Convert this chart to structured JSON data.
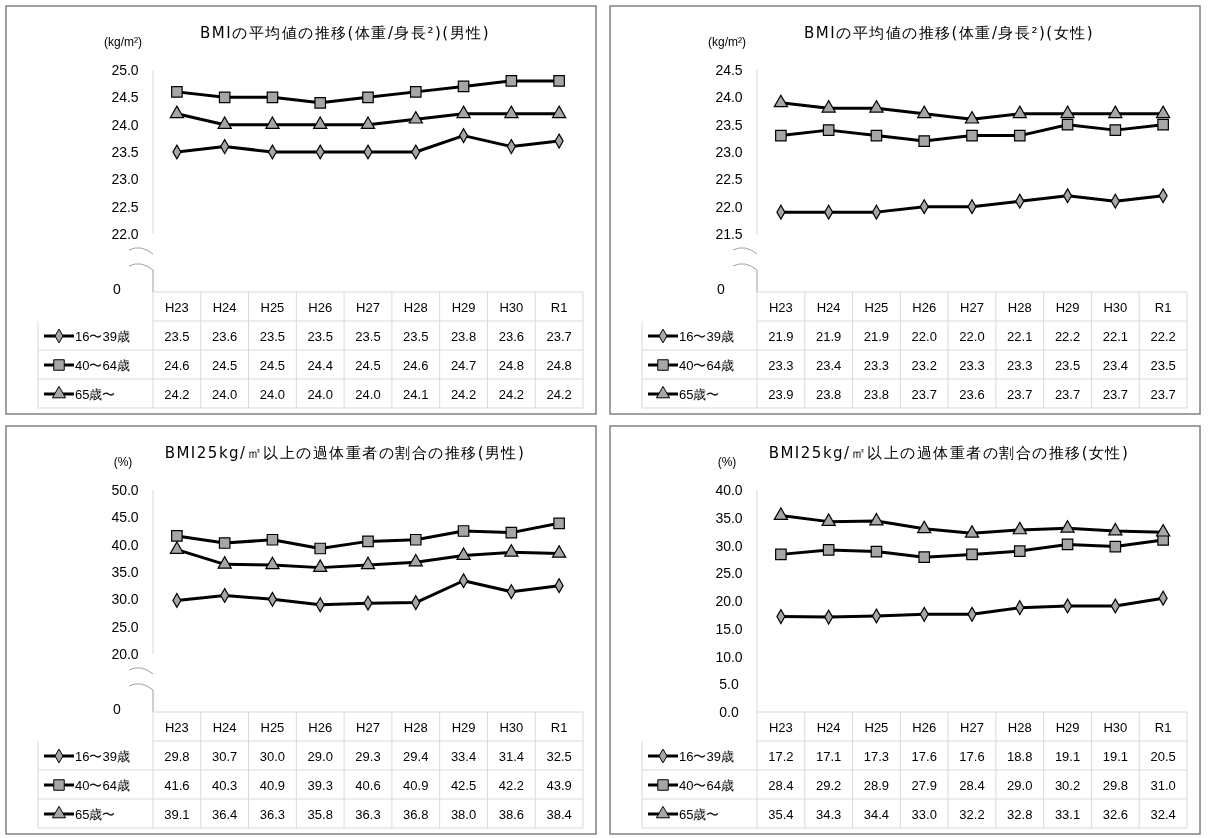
{
  "chart_data": [
    {
      "type": "line",
      "title": "BMIの平均値の推移(体重/身長²)(男性)",
      "ylabel": "(kg/m²)",
      "categories": [
        "H23",
        "H24",
        "H25",
        "H26",
        "H27",
        "H28",
        "H29",
        "H30",
        "R1"
      ],
      "ylim": [
        22.0,
        25.0
      ],
      "yticks": [
        {
          "value": 22,
          "label": "22.0"
        },
        {
          "value": 22.5,
          "label": "22.5"
        },
        {
          "value": 23,
          "label": "23.0"
        },
        {
          "value": 23.5,
          "label": "23.5"
        },
        {
          "value": 24,
          "label": "24.0"
        },
        {
          "value": 24.5,
          "label": "24.5"
        },
        {
          "value": 25,
          "label": "25.0"
        }
      ],
      "annotations": [
        "0"
      ],
      "legend": "bottom",
      "line_style": "solid",
      "series": [
        {
          "name": "16〜39歳",
          "color": "#000000",
          "marker": "diamond",
          "values": [
            23.5,
            23.6,
            23.5,
            23.5,
            23.5,
            23.5,
            23.8,
            23.6,
            23.7
          ],
          "value_labels": [
            "23.5",
            "23.6",
            "23.5",
            "23.5",
            "23.5",
            "23.5",
            "23.8",
            "23.6",
            "23.7"
          ]
        },
        {
          "name": "40〜64歳",
          "color": "#000000",
          "marker": "square",
          "values": [
            24.6,
            24.5,
            24.5,
            24.4,
            24.5,
            24.6,
            24.7,
            24.8,
            24.8
          ],
          "value_labels": [
            "24.6",
            "24.5",
            "24.5",
            "24.4",
            "24.5",
            "24.6",
            "24.7",
            "24.8",
            "24.8"
          ]
        },
        {
          "name": "65歳〜",
          "color": "#000000",
          "marker": "triangle",
          "values": [
            24.2,
            24.0,
            24.0,
            24.0,
            24.0,
            24.1,
            24.2,
            24.2,
            24.2
          ],
          "value_labels": [
            "24.2",
            "24.0",
            "24.0",
            "24.0",
            "24.0",
            "24.1",
            "24.2",
            "24.2",
            "24.2"
          ]
        }
      ]
    },
    {
      "type": "line",
      "title": "BMIの平均値の推移(体重/身長²)(女性)",
      "ylabel": "(kg/m²)",
      "categories": [
        "H23",
        "H24",
        "H25",
        "H26",
        "H27",
        "H28",
        "H29",
        "H30",
        "R1"
      ],
      "ylim": [
        21.5,
        24.5
      ],
      "yticks": [
        {
          "value": 21.5,
          "label": "21.5"
        },
        {
          "value": 22,
          "label": "22.0"
        },
        {
          "value": 22.5,
          "label": "22.5"
        },
        {
          "value": 23,
          "label": "23.0"
        },
        {
          "value": 23.5,
          "label": "23.5"
        },
        {
          "value": 24,
          "label": "24.0"
        },
        {
          "value": 24.5,
          "label": "24.5"
        }
      ],
      "annotations": [
        "0"
      ],
      "legend": "bottom",
      "line_style": "solid",
      "series": [
        {
          "name": "16〜39歳",
          "color": "#000000",
          "marker": "diamond",
          "values": [
            21.9,
            21.9,
            21.9,
            22.0,
            22.0,
            22.1,
            22.2,
            22.1,
            22.2
          ],
          "value_labels": [
            "21.9",
            "21.9",
            "21.9",
            "22.0",
            "22.0",
            "22.1",
            "22.2",
            "22.1",
            "22.2"
          ]
        },
        {
          "name": "40〜64歳",
          "color": "#000000",
          "marker": "square",
          "values": [
            23.3,
            23.4,
            23.3,
            23.2,
            23.3,
            23.3,
            23.5,
            23.4,
            23.5
          ],
          "value_labels": [
            "23.3",
            "23.4",
            "23.3",
            "23.2",
            "23.3",
            "23.3",
            "23.5",
            "23.4",
            "23.5"
          ]
        },
        {
          "name": "65歳〜",
          "color": "#000000",
          "marker": "triangle",
          "values": [
            23.9,
            23.8,
            23.8,
            23.7,
            23.6,
            23.7,
            23.7,
            23.7,
            23.7
          ],
          "value_labels": [
            "23.9",
            "23.8",
            "23.8",
            "23.7",
            "23.6",
            "23.7",
            "23.7",
            "23.7",
            "23.7"
          ]
        }
      ]
    },
    {
      "type": "line",
      "title": "BMI25kg/㎡以上の過体重者の割合の推移(男性)",
      "ylabel": "(%)",
      "categories": [
        "H23",
        "H24",
        "H25",
        "H26",
        "H27",
        "H28",
        "H29",
        "H30",
        "R1"
      ],
      "ylim": [
        20.0,
        50.0
      ],
      "yticks": [
        {
          "value": 20,
          "label": "20.0"
        },
        {
          "value": 25,
          "label": "25.0"
        },
        {
          "value": 30,
          "label": "30.0"
        },
        {
          "value": 35,
          "label": "35.0"
        },
        {
          "value": 40,
          "label": "40.0"
        },
        {
          "value": 45,
          "label": "45.0"
        },
        {
          "value": 50,
          "label": "50.0"
        }
      ],
      "annotations": [
        "0"
      ],
      "legend": "bottom",
      "line_style": "solid",
      "series": [
        {
          "name": "16〜39歳",
          "color": "#000000",
          "marker": "diamond",
          "values": [
            29.8,
            30.7,
            30.0,
            29.0,
            29.3,
            29.4,
            33.4,
            31.4,
            32.5
          ],
          "value_labels": [
            "29.8",
            "30.7",
            "30.0",
            "29.0",
            "29.3",
            "29.4",
            "33.4",
            "31.4",
            "32.5"
          ]
        },
        {
          "name": "40〜64歳",
          "color": "#000000",
          "marker": "square",
          "values": [
            41.6,
            40.3,
            40.9,
            39.3,
            40.6,
            40.9,
            42.5,
            42.2,
            43.9
          ],
          "value_labels": [
            "41.6",
            "40.3",
            "40.9",
            "39.3",
            "40.6",
            "40.9",
            "42.5",
            "42.2",
            "43.9"
          ]
        },
        {
          "name": "65歳〜",
          "color": "#000000",
          "marker": "triangle",
          "values": [
            39.1,
            36.4,
            36.3,
            35.8,
            36.3,
            36.8,
            38.0,
            38.6,
            38.4
          ],
          "value_labels": [
            "39.1",
            "36.4",
            "36.3",
            "35.8",
            "36.3",
            "36.8",
            "38.0",
            "38.6",
            "38.4"
          ]
        }
      ]
    },
    {
      "type": "line",
      "title": "BMI25kg/㎡以上の過体重者の割合の推移(女性)",
      "ylabel": "(%)",
      "categories": [
        "H23",
        "H24",
        "H25",
        "H26",
        "H27",
        "H28",
        "H29",
        "H30",
        "R1"
      ],
      "ylim": [
        0.0,
        40.0
      ],
      "yticks": [
        {
          "value": 0,
          "label": "0.0"
        },
        {
          "value": 5,
          "label": "5.0"
        },
        {
          "value": 10,
          "label": "10.0"
        },
        {
          "value": 15,
          "label": "15.0"
        },
        {
          "value": 20,
          "label": "20.0"
        },
        {
          "value": 25,
          "label": "25.0"
        },
        {
          "value": 30,
          "label": "30.0"
        },
        {
          "value": 35,
          "label": "35.0"
        },
        {
          "value": 40,
          "label": "40.0"
        }
      ],
      "legend": "bottom",
      "line_style": "solid",
      "series": [
        {
          "name": "16〜39歳",
          "color": "#000000",
          "marker": "diamond",
          "values": [
            17.2,
            17.1,
            17.3,
            17.6,
            17.6,
            18.8,
            19.1,
            19.1,
            20.5
          ],
          "value_labels": [
            "17.2",
            "17.1",
            "17.3",
            "17.6",
            "17.6",
            "18.8",
            "19.1",
            "19.1",
            "20.5"
          ]
        },
        {
          "name": "40〜64歳",
          "color": "#000000",
          "marker": "square",
          "values": [
            28.4,
            29.2,
            28.9,
            27.9,
            28.4,
            29.0,
            30.2,
            29.8,
            31.0
          ],
          "value_labels": [
            "28.4",
            "29.2",
            "28.9",
            "27.9",
            "28.4",
            "29.0",
            "30.2",
            "29.8",
            "31.0"
          ]
        },
        {
          "name": "65歳〜",
          "color": "#000000",
          "marker": "triangle",
          "values": [
            35.4,
            34.3,
            34.4,
            33.0,
            32.2,
            32.8,
            33.1,
            32.6,
            32.4
          ],
          "value_labels": [
            "35.4",
            "34.3",
            "34.4",
            "33.0",
            "32.2",
            "32.8",
            "33.1",
            "32.6",
            "32.4"
          ]
        }
      ]
    }
  ]
}
